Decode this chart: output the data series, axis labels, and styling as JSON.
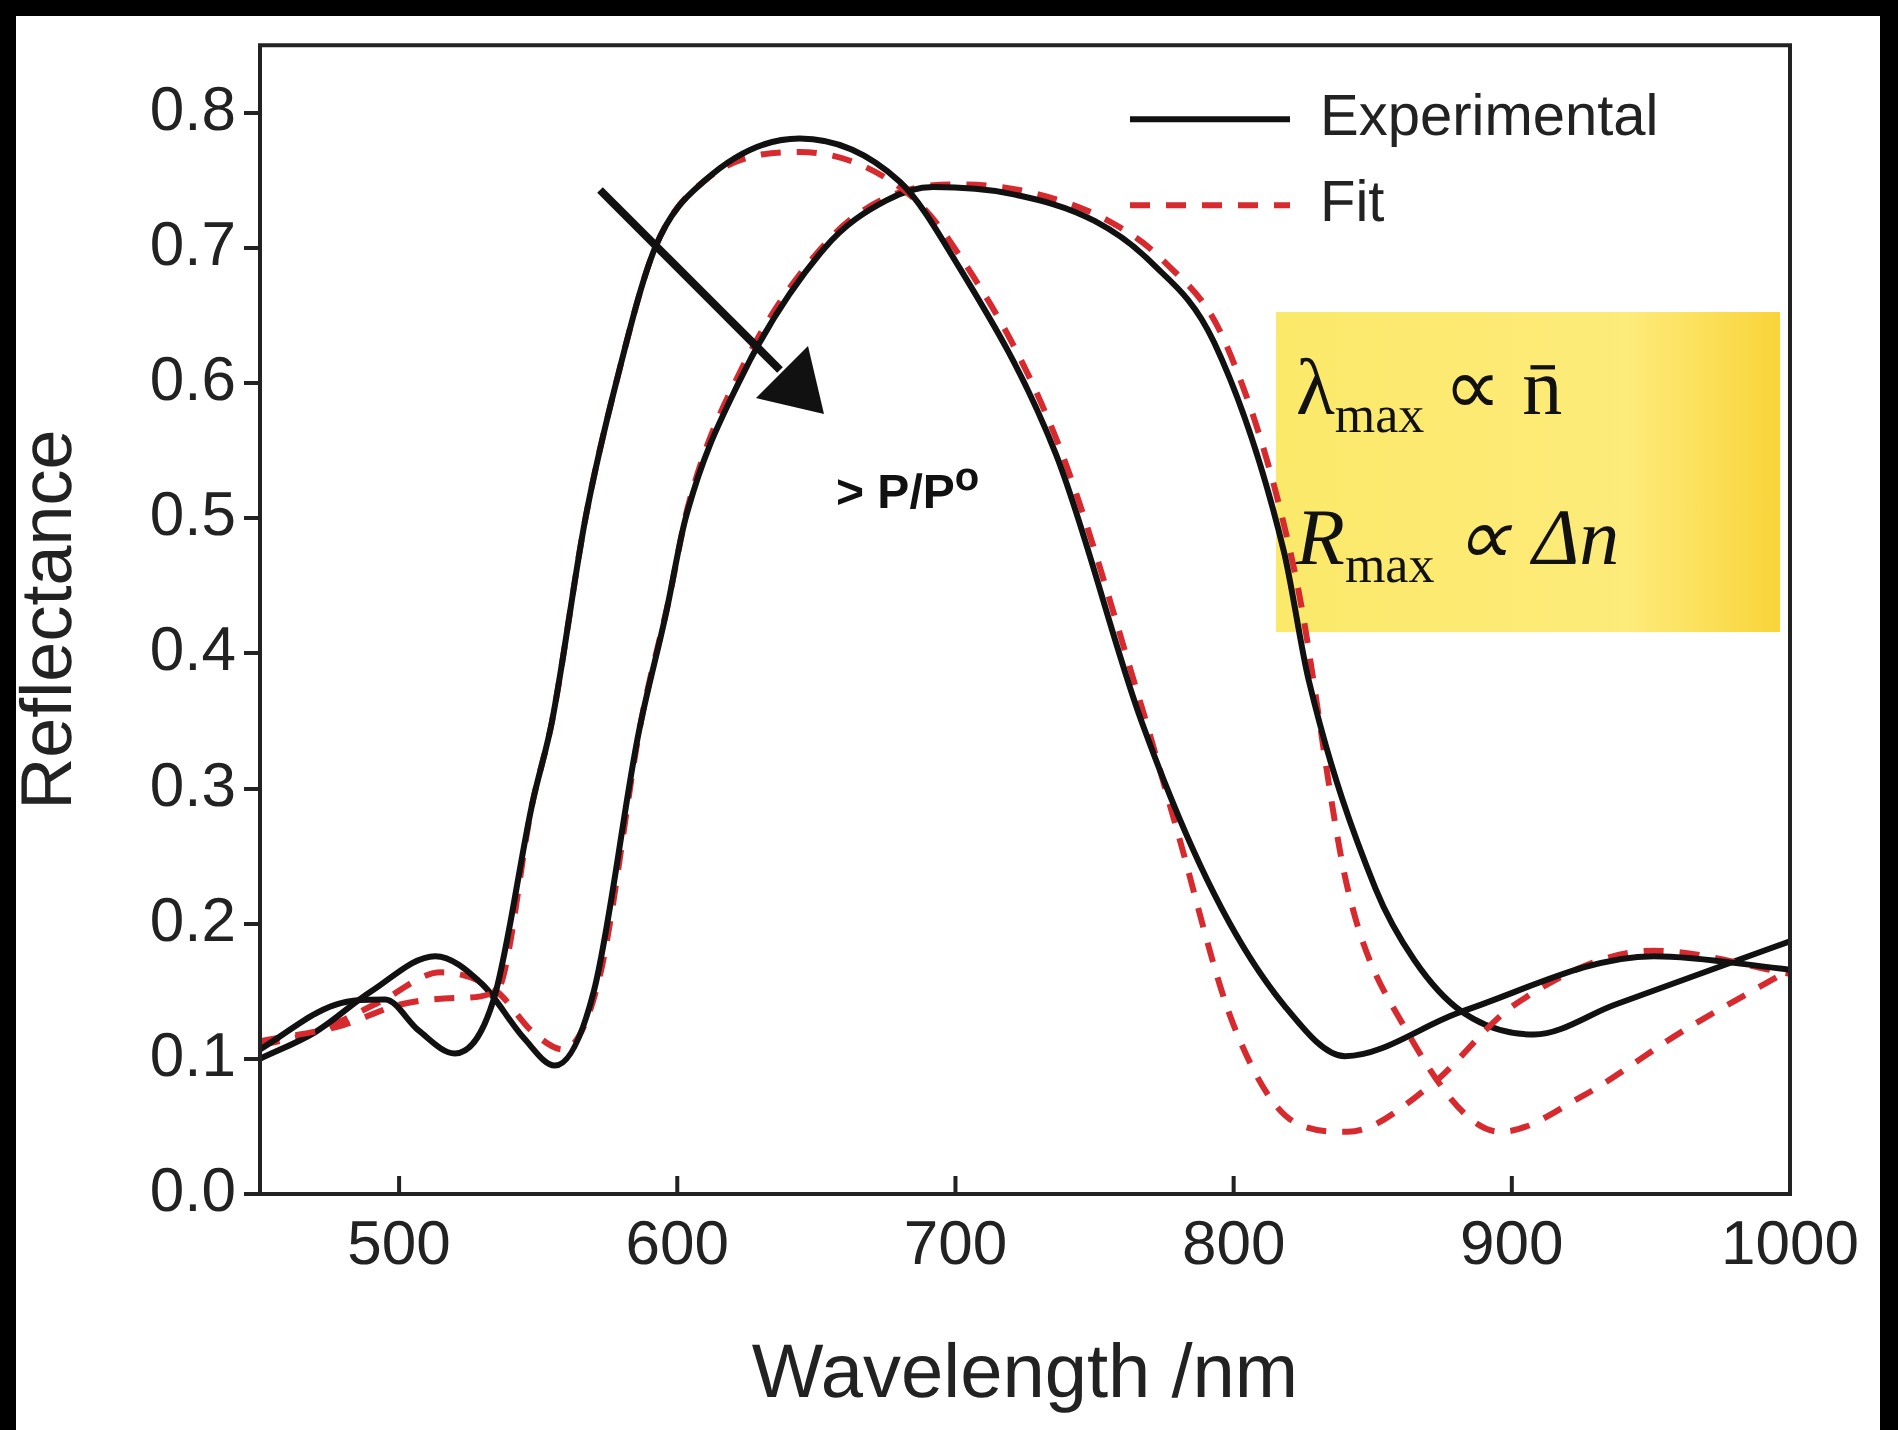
{
  "chart_data": {
    "type": "line",
    "xlabel": "Wavelength /nm",
    "ylabel": "Reflectance",
    "xlim": [
      450,
      1000
    ],
    "xticks": [
      500,
      600,
      700,
      800,
      900,
      1000
    ],
    "ylim": [
      0,
      0.85
    ],
    "yticks": [
      {
        "value": 0,
        "label": "0.0"
      },
      {
        "value": 0.1,
        "label": "0.1"
      },
      {
        "value": 0.2,
        "label": "0.2"
      },
      {
        "value": 0.3,
        "label": "0.3"
      },
      {
        "value": 0.4,
        "label": "0.4"
      },
      {
        "value": 0.5,
        "label": "0.5"
      },
      {
        "value": 0.6,
        "label": "0.6"
      },
      {
        "value": 0.7,
        "label": "0.7"
      },
      {
        "value": 0.8,
        "label": "0.8"
      }
    ],
    "grid": false,
    "legend": "top right",
    "marker": "none",
    "series": [
      {
        "name": "Experimental",
        "color": "#111111",
        "line_style": "solid",
        "x": [
          450,
          477,
          495,
          507,
          520,
          534,
          548,
          555,
          567,
          578,
          592,
          610,
          644,
          680,
          698,
          736,
          767,
          793,
          818,
          840,
          882,
          951,
          1000
        ],
        "values": [
          0.107,
          0.14,
          0.144,
          0.121,
          0.104,
          0.144,
          0.29,
          0.35,
          0.5,
          0.6,
          0.7,
          0.75,
          0.781,
          0.749,
          0.697,
          0.548,
          0.349,
          0.222,
          0.14,
          0.102,
          0.135,
          0.176,
          0.166
        ]
      },
      {
        "name": "Fit",
        "color": "#d62a2f",
        "line_style": "dashed",
        "x": [
          450,
          480,
          500,
          520,
          535,
          548,
          555,
          567,
          578,
          592,
          610,
          644,
          680,
          698,
          736,
          767,
          779,
          800,
          822,
          841,
          870,
          901,
          951,
          1000
        ],
        "values": [
          0.113,
          0.125,
          0.14,
          0.145,
          0.15,
          0.29,
          0.35,
          0.5,
          0.6,
          0.7,
          0.75,
          0.771,
          0.745,
          0.705,
          0.56,
          0.36,
          0.274,
          0.125,
          0.053,
          0.046,
          0.079,
          0.14,
          0.18,
          0.163
        ]
      },
      {
        "color": "#111111",
        "line_style": "solid",
        "x": [
          450,
          470,
          490,
          513,
          530,
          545,
          556,
          570,
          586,
          596,
          603,
          622,
          653,
          675,
          692,
          720,
          750,
          770,
          793,
          818,
          827,
          851,
          865,
          882,
          908,
          937,
          1000
        ],
        "values": [
          0.1,
          0.12,
          0.15,
          0.176,
          0.155,
          0.115,
          0.095,
          0.15,
          0.34,
          0.43,
          0.5,
          0.6,
          0.7,
          0.735,
          0.745,
          0.74,
          0.72,
          0.69,
          0.63,
          0.476,
          0.38,
          0.226,
          0.173,
          0.135,
          0.118,
          0.14,
          0.187
        ]
      },
      {
        "color": "#d62a2f",
        "line_style": "dashed",
        "x": [
          450,
          470,
          493,
          515,
          535,
          548,
          559,
          572,
          587,
          597,
          604,
          623,
          654,
          676,
          700,
          725,
          755,
          775,
          797,
          822,
          841,
          861,
          896,
          925,
          961,
          1000
        ],
        "values": [
          0.11,
          0.12,
          0.142,
          0.164,
          0.15,
          0.12,
          0.107,
          0.16,
          0.35,
          0.44,
          0.51,
          0.61,
          0.705,
          0.738,
          0.747,
          0.742,
          0.72,
          0.69,
          0.63,
          0.46,
          0.226,
          0.125,
          0.046,
          0.072,
          0.12,
          0.166
        ]
      }
    ],
    "annotations": [
      "> P/P$^{o}$",
      "λ$_{max}$ ∝ n̄",
      "R$_{max}$ ∝ Δn"
    ]
  }
}
